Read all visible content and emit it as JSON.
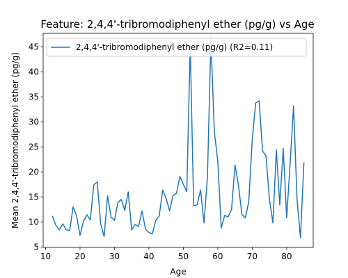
{
  "chart_data": {
    "type": "line",
    "title": "Feature: 2,4,4'-tribromodiphenyl ether (pg/g) vs Age",
    "xlabel": "Age",
    "ylabel": "Mean 2,4,4'-tribromodiphenyl ether (pg/g)",
    "xlim": [
      9.3,
      87.7
    ],
    "ylim": [
      4.9,
      47.7
    ],
    "xticks": [
      10,
      20,
      30,
      40,
      50,
      60,
      70,
      80
    ],
    "yticks": [
      5,
      10,
      15,
      20,
      25,
      30,
      35,
      40,
      45
    ],
    "grid": false,
    "legend_position": "top-left",
    "series": [
      {
        "name": "2,4,4'-tribromodiphenyl ether (pg/g) (R2=0.11)",
        "color": "#1f77b4",
        "x": [
          12,
          13,
          14,
          15,
          16,
          17,
          18,
          19,
          20,
          21,
          22,
          23,
          24,
          25,
          26,
          27,
          28,
          29,
          30,
          31,
          32,
          33,
          34,
          35,
          36,
          37,
          38,
          39,
          40,
          41,
          42,
          43,
          44,
          45,
          46,
          47,
          48,
          49,
          50,
          51,
          52,
          53,
          54,
          55,
          56,
          57,
          58,
          59,
          60,
          61,
          62,
          63,
          64,
          65,
          66,
          67,
          68,
          69,
          70,
          71,
          72,
          73,
          74,
          75,
          76,
          77,
          78,
          79,
          80,
          81,
          82,
          83,
          84,
          85
        ],
        "y": [
          11.1,
          9.3,
          8.4,
          9.6,
          8.4,
          8.3,
          13.0,
          11.2,
          7.3,
          10.1,
          11.4,
          10.4,
          17.4,
          18.0,
          9.6,
          7.1,
          15.2,
          11.0,
          10.3,
          13.9,
          14.5,
          12.3,
          16.0,
          8.4,
          9.5,
          9.1,
          12.2,
          8.6,
          7.9,
          7.6,
          10.3,
          11.2,
          16.4,
          14.7,
          12.2,
          15.3,
          15.7,
          19.1,
          17.5,
          16.1,
          45.2,
          13.2,
          13.4,
          16.4,
          9.8,
          19.0,
          46.5,
          28.0,
          22.2,
          8.8,
          11.3,
          11.0,
          12.5,
          21.4,
          17.3,
          11.5,
          10.8,
          14.1,
          26.4,
          33.8,
          34.2,
          24.2,
          23.2,
          14.5,
          9.8,
          24.4,
          13.4,
          24.7,
          10.8,
          21.7,
          33.2,
          14.6,
          6.8,
          21.8
        ]
      }
    ]
  }
}
